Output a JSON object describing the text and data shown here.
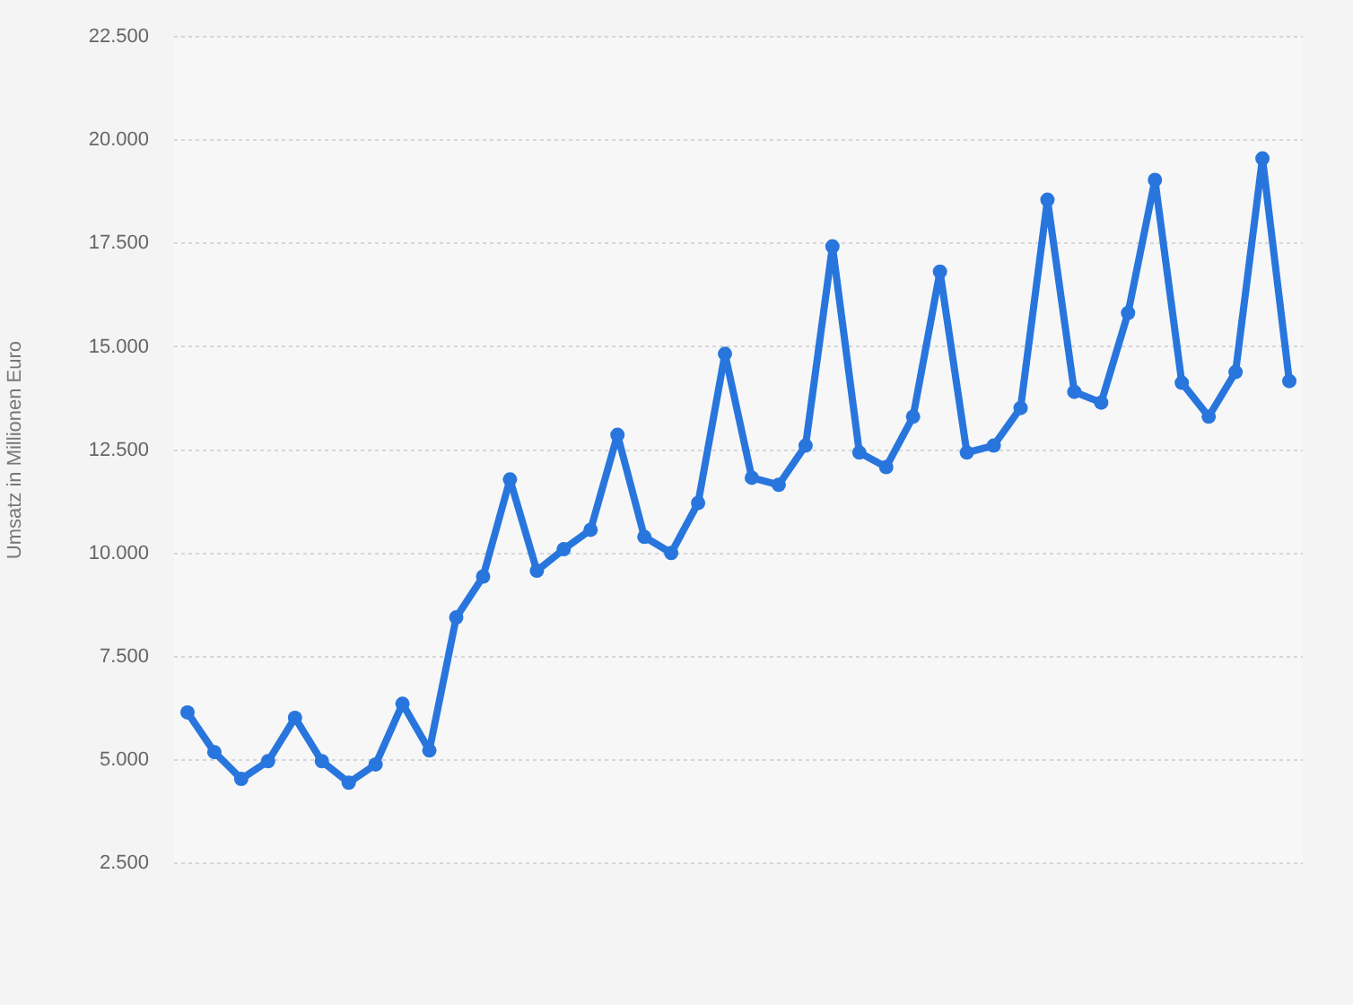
{
  "chart_data": {
    "type": "line",
    "ylabel": "Umsatz in Millionen Euro",
    "categories": [
      null,
      null,
      null,
      null,
      null,
      null,
      null,
      null,
      null,
      null,
      null,
      null,
      null,
      null,
      null,
      null,
      null,
      null,
      null,
      null,
      null,
      null,
      null,
      null,
      null,
      null,
      null,
      null,
      null,
      null,
      null,
      null,
      null,
      null,
      null,
      null,
      null,
      null,
      null,
      null,
      null,
      null
    ],
    "series": [
      {
        "color": "#2876dd",
        "values": [
          6150,
          5190,
          4540,
          4970,
          6020,
          4970,
          4450,
          4890,
          6360,
          5230,
          8450,
          9440,
          11790,
          9580,
          10100,
          10570,
          12870,
          10400,
          10010,
          11220,
          14830,
          11830,
          11660,
          12610,
          17430,
          12440,
          12090,
          13310,
          16820,
          12440,
          12610,
          13520,
          18560,
          13910,
          13650,
          15820,
          19040,
          14130,
          13310,
          14390,
          19560,
          14170
        ]
      }
    ],
    "ylim": [
      2500,
      22500
    ],
    "yticks": [
      {
        "value": 2500,
        "label": "2.500"
      },
      {
        "value": 5000,
        "label": "5.000"
      },
      {
        "value": 7500,
        "label": "7.500"
      },
      {
        "value": 10000,
        "label": "10.000"
      },
      {
        "value": 12500,
        "label": "12.500"
      },
      {
        "value": 15000,
        "label": "15.000"
      },
      {
        "value": 17500,
        "label": "17.500"
      },
      {
        "value": 20000,
        "label": "20.000"
      },
      {
        "value": 22500,
        "label": "22.500"
      }
    ],
    "grid": "y",
    "legend": false,
    "marker": "circle",
    "line_style": "solid"
  }
}
